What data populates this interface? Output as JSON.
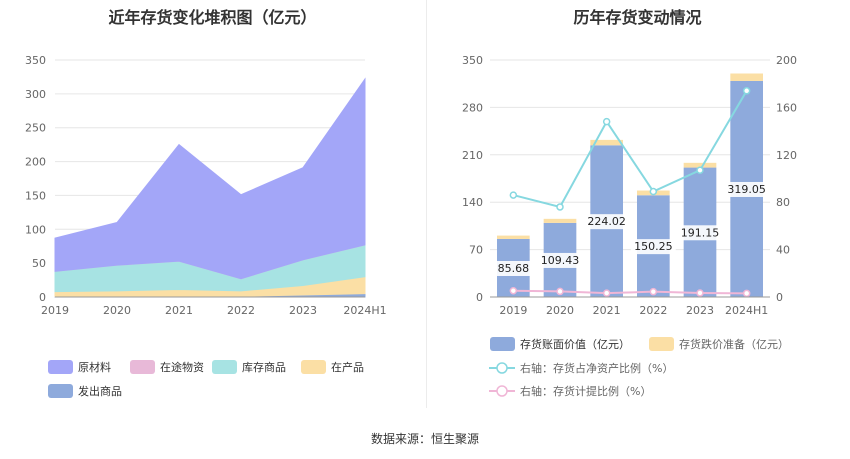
{
  "titles": {
    "left": "近年存货变化堆积图（亿元）",
    "right": "历年存货变动情况"
  },
  "source": "数据来源：恒生聚源",
  "chart_data": [
    {
      "type": "area",
      "stacked": true,
      "title": "近年存货变化堆积图（亿元）",
      "categories": [
        "2019",
        "2020",
        "2021",
        "2022",
        "2023",
        "2024H1"
      ],
      "ylim": [
        0,
        350
      ],
      "yticks": [
        0,
        50,
        100,
        150,
        200,
        250,
        300,
        350
      ],
      "grid": true,
      "legend_position": "bottom",
      "series": [
        {
          "name": "发出商品",
          "color": "#8eaadc",
          "values": [
            1,
            1,
            1,
            1,
            3,
            5
          ]
        },
        {
          "name": "在产品",
          "color": "#fbdfa5",
          "values": [
            7,
            8,
            10,
            8,
            14,
            25
          ]
        },
        {
          "name": "库存商品",
          "color": "#a7e3e3",
          "values": [
            30,
            38,
            42,
            18,
            38,
            47
          ]
        },
        {
          "name": "在途物资",
          "color": "#e8b9d8",
          "values": [
            0,
            0,
            0,
            0,
            0,
            0
          ]
        },
        {
          "name": "原材料",
          "color": "#a3a6f8",
          "values": [
            49,
            63,
            172,
            124,
            136,
            245
          ]
        }
      ],
      "legend_order": [
        "原材料",
        "在途物资",
        "库存商品",
        "在产品",
        "发出商品"
      ]
    },
    {
      "type": "bar",
      "stacked": true,
      "title": "历年存货变动情况",
      "categories": [
        "2019",
        "2020",
        "2021",
        "2022",
        "2023",
        "2024H1"
      ],
      "ylim": [
        0,
        350
      ],
      "yticks": [
        0,
        70,
        140,
        210,
        280,
        350
      ],
      "y2lim": [
        0,
        200
      ],
      "y2ticks": [
        0,
        40,
        80,
        120,
        160,
        200
      ],
      "grid": true,
      "legend_position": "bottom",
      "series": [
        {
          "name": "存货账面价值（亿元）",
          "color": "#8eaadc",
          "values": [
            85.68,
            109.43,
            224.02,
            150.25,
            191.15,
            319.05
          ],
          "labels": [
            "85.68",
            "109.43",
            "224.02",
            "150.25",
            "191.15",
            "319.05"
          ]
        },
        {
          "name": "存货跌价准备（亿元）",
          "color": "#fbdfa5",
          "values": [
            5,
            6,
            8,
            7,
            7,
            11
          ]
        }
      ],
      "lines": [
        {
          "name": "右轴：存货占净资产比例（%）",
          "color": "#86d8e0",
          "axis": "right",
          "values": [
            86,
            76,
            148,
            89,
            107,
            174
          ]
        },
        {
          "name": "右轴：存货计提比例（%）",
          "color": "#f0b6d6",
          "axis": "right",
          "values": [
            5.3,
            4.7,
            3.3,
            4.5,
            3.4,
            3.1
          ]
        }
      ]
    }
  ]
}
